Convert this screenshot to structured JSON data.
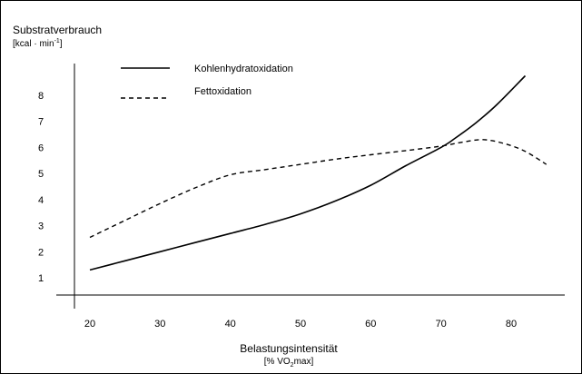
{
  "chart_data": {
    "type": "line",
    "title": "",
    "ylabel": "Substratverbrauch",
    "ylabel_unit_prefix": "[kcal · min",
    "ylabel_unit_sup": "-1",
    "ylabel_unit_suffix": "]",
    "xlabel": "Belastungsintensität",
    "xlabel_unit_prefix": "[% VO",
    "xlabel_unit_sub": "2",
    "xlabel_unit_suffix": "max]",
    "xlim": [
      15,
      90
    ],
    "ylim": [
      0,
      9
    ],
    "x_ticks": [
      20,
      30,
      40,
      50,
      60,
      70,
      80
    ],
    "y_ticks": [
      1,
      2,
      3,
      4,
      5,
      6,
      7,
      8
    ],
    "grid": false,
    "legend": "top-left",
    "series": [
      {
        "name": "Kohlenhydratoxidation",
        "style": "solid",
        "x": [
          20,
          25,
          30,
          35,
          40,
          45,
          50,
          55,
          60,
          65,
          70,
          72,
          75,
          78,
          82
        ],
        "y": [
          1.3,
          1.65,
          2.0,
          2.35,
          2.7,
          3.05,
          3.45,
          3.95,
          4.55,
          5.3,
          6.0,
          6.35,
          6.95,
          7.65,
          8.75
        ]
      },
      {
        "name": "Fettoxidation",
        "style": "dashed",
        "x": [
          20,
          25,
          30,
          35,
          40,
          45,
          50,
          55,
          60,
          65,
          70,
          73,
          76,
          79,
          82,
          85
        ],
        "y": [
          2.55,
          3.2,
          3.85,
          4.45,
          4.95,
          5.15,
          5.35,
          5.55,
          5.72,
          5.88,
          6.05,
          6.2,
          6.3,
          6.15,
          5.85,
          5.35
        ]
      }
    ]
  }
}
